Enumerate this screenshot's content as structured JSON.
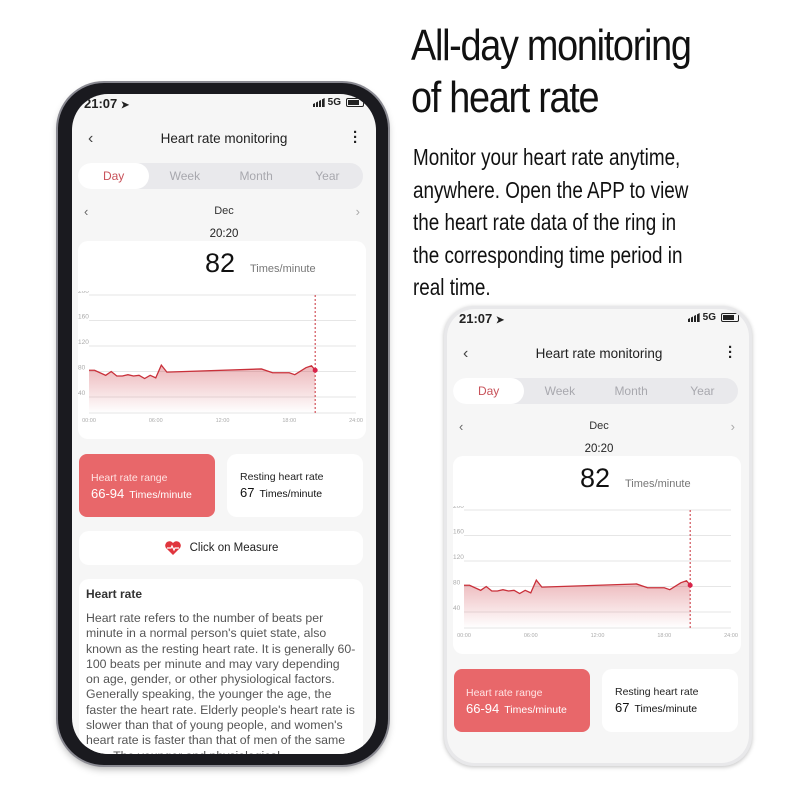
{
  "headline": {
    "lines": [
      "All-day monitoring",
      "of heart rate"
    ],
    "body": [
      "Monitor your heart rate anytime,",
      "anywhere. Open the APP to view",
      "the heart rate data of the ring in",
      "the corresponding time period in",
      "real time."
    ]
  },
  "status": {
    "time": "21:07",
    "network": "5G",
    "icons": [
      "location-arrow-icon",
      "signal-icon",
      "battery-icon"
    ]
  },
  "header": {
    "title": "Heart rate monitoring",
    "back_icon": "chevron-left-icon",
    "menu_icon": "more-vertical-icon"
  },
  "tabs": [
    {
      "label": "Day",
      "active": true
    },
    {
      "label": "Week"
    },
    {
      "label": "Month"
    },
    {
      "label": "Year"
    }
  ],
  "date_nav": {
    "label": "Dec"
  },
  "reading": {
    "time": "20:20",
    "value": "82",
    "unit": "Times/minute"
  },
  "chart_data": {
    "type": "area",
    "y_ticks": [
      "200",
      "160",
      "120",
      "80",
      "40"
    ],
    "x_ticks": [
      "00:00",
      "06:00",
      "12:00",
      "18:00",
      "24:00"
    ],
    "ylim": [
      40,
      200
    ],
    "xlim": [
      0,
      24
    ],
    "grid": true,
    "color": "#c9303a",
    "selected_x": 20.33,
    "x": [
      0,
      0.5,
      1.5,
      2,
      2.5,
      3,
      3.5,
      4,
      4.5,
      5,
      5.5,
      6,
      6.5,
      7,
      15.5,
      16.5,
      18,
      18.5,
      19.5,
      20,
      20.33
    ],
    "y": [
      82,
      82,
      74,
      80,
      73,
      73,
      75,
      73,
      74,
      69,
      74,
      70,
      90,
      79,
      84,
      78,
      78,
      75,
      86,
      89,
      82
    ]
  },
  "range_card": {
    "label": "Heart rate range",
    "value": "66-94",
    "unit": "Times/minute",
    "color": "#e8676a"
  },
  "resting_card": {
    "label": "Resting heart rate",
    "value": "67",
    "unit": "Times/minute"
  },
  "measure_button": {
    "label": "Click on Measure",
    "icon": "heart-pulse-icon"
  },
  "info": {
    "title": "Heart rate",
    "text": "Heart rate refers to the number of beats per minute in a normal person's quiet state, also known as the resting heart rate. It is generally 60-100 beats per minute and may vary depending on age, gender, or other physiological factors. Generally speaking, the younger the age, the faster the heart rate. Elderly people's heart rate is slower than that of young people, and women's heart rate is faster than that of men of the same age. The younger and physiological"
  }
}
